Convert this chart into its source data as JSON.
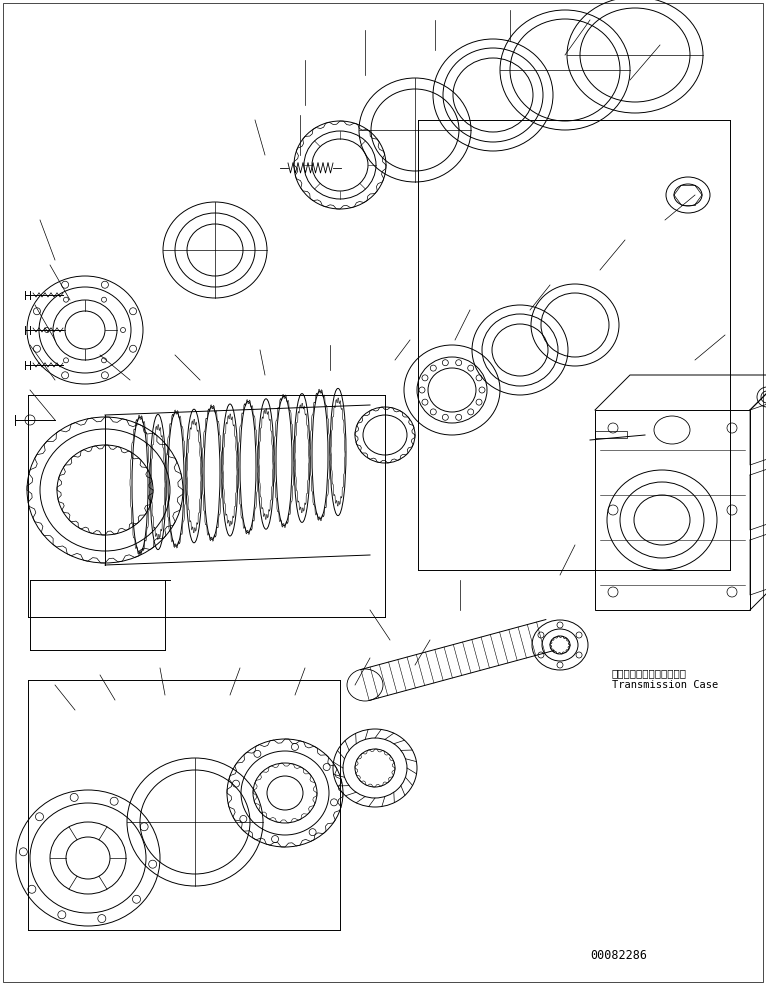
{
  "background_color": "#ffffff",
  "line_color": "#000000",
  "label_japanese": "トランスミッションケース",
  "label_english": "Transmission Case",
  "part_number": "00082286",
  "fig_width": 7.66,
  "fig_height": 9.85,
  "dpi": 100
}
